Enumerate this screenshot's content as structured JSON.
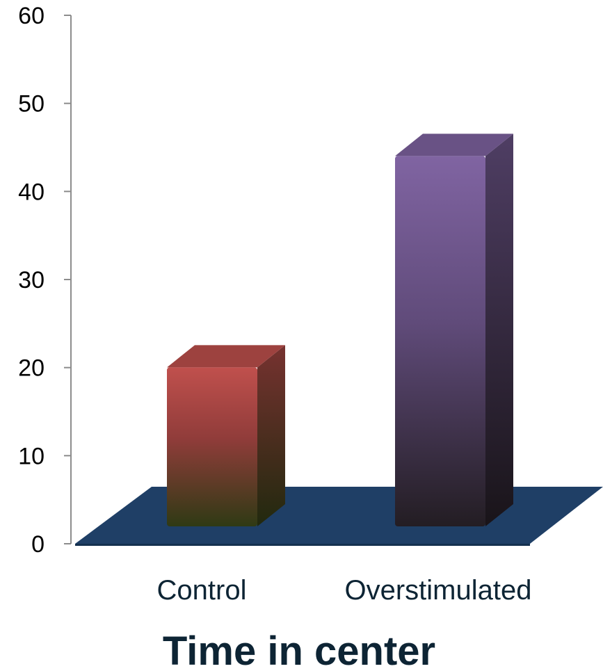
{
  "chart_data": {
    "type": "bar",
    "style": "3d-column",
    "title": "Time in center",
    "xlabel": "",
    "ylabel": "",
    "categories": [
      "Control",
      "Overstimulated"
    ],
    "values": [
      22,
      46
    ],
    "ylim": [
      0,
      60
    ],
    "yticks": [
      "0",
      "10",
      "20",
      "30",
      "40",
      "50",
      "60"
    ],
    "grid": false,
    "legend": "none",
    "colors": {
      "bars": [
        "#c0504d",
        "#8064a2"
      ],
      "bar_bottoms": [
        "#2f3a14",
        "#231d23"
      ],
      "floor": "#1f3f66"
    }
  }
}
